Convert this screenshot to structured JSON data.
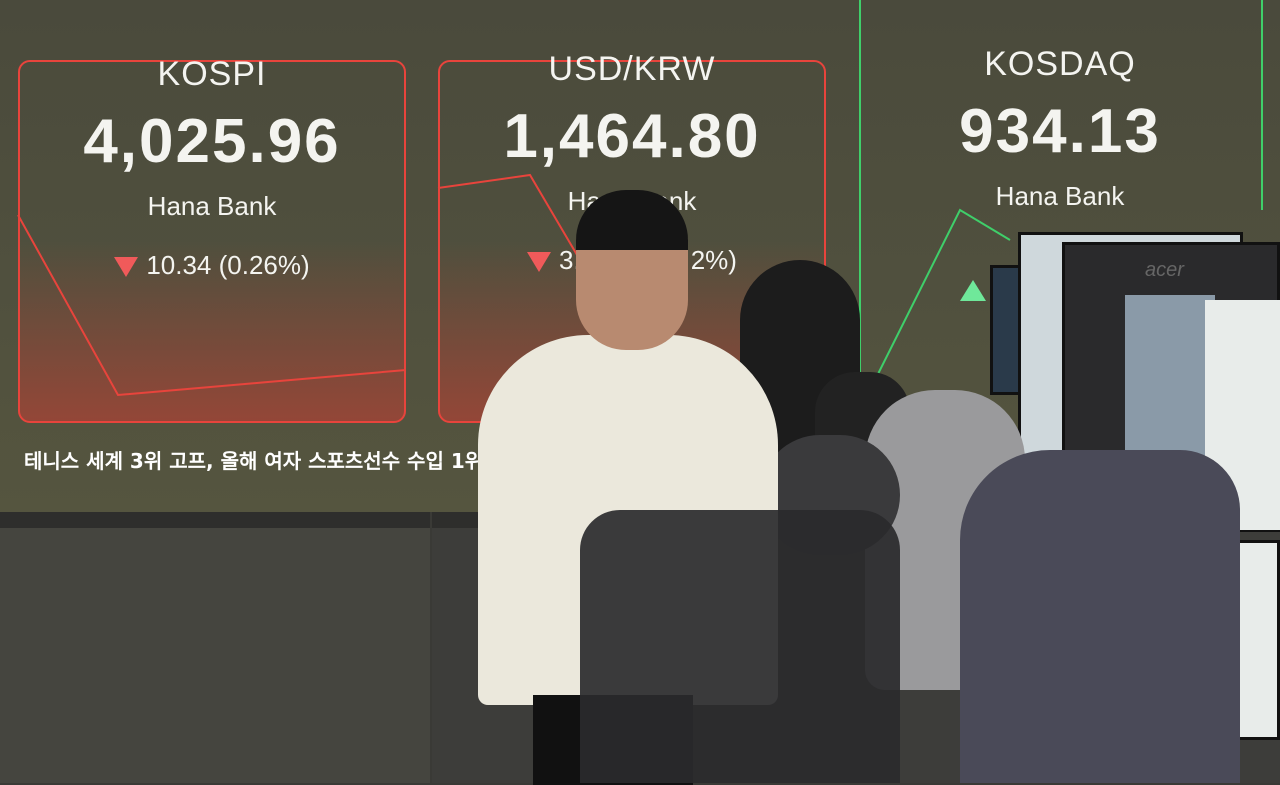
{
  "board": {
    "kospi": {
      "name": "KOSPI",
      "value": "4,025.96",
      "logo": "Hana Bank",
      "change": "10.34 (0.26%)",
      "direction": "down"
    },
    "usdkrw": {
      "name": "USD/KRW",
      "value": "1,464.80",
      "logo": "Hana Bank",
      "change_visible_start": "3.",
      "change_visible_end": "2%)",
      "direction": "down"
    },
    "kosdaq": {
      "name": "KOSDAQ",
      "value": "934.13",
      "logo": "Hana Bank",
      "direction": "up"
    },
    "ticker": "테니스 세계 3위 고프, 올해 여자 스포츠선수 수입 1위·",
    "colors": {
      "down": "#f05a5a",
      "up": "#6fe89a",
      "chart_down": "#e8443c",
      "chart_up": "#3fcf6a"
    }
  },
  "monitor_brand": "acer"
}
